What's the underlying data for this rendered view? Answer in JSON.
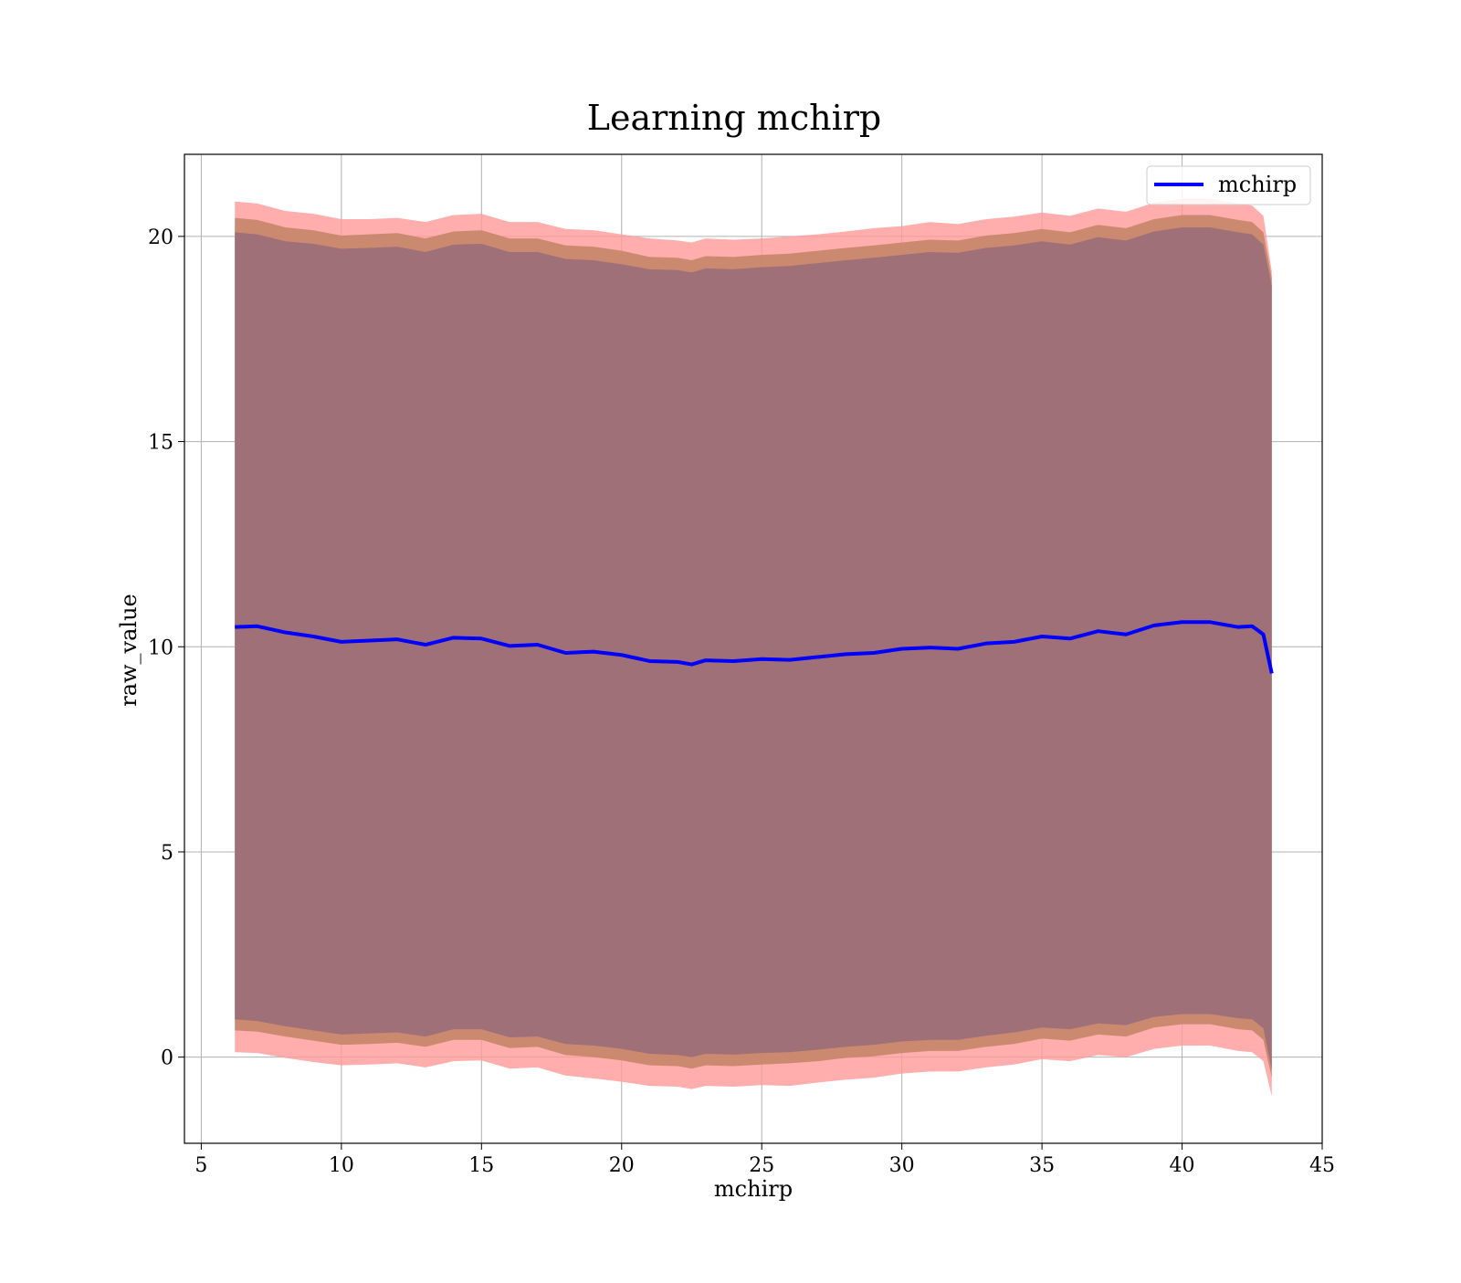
{
  "chart_data": {
    "type": "area",
    "title": "Learning mchirp",
    "xlabel": "mchirp",
    "ylabel": "raw_value",
    "xlim": [
      4.4,
      45
    ],
    "ylim": [
      -2.1,
      22
    ],
    "xticks": [
      5,
      10,
      15,
      20,
      25,
      30,
      35,
      40,
      45
    ],
    "yticks": [
      0,
      5,
      10,
      15,
      20
    ],
    "grid": true,
    "legend": {
      "position": "top-right",
      "entries": [
        "mchirp"
      ]
    },
    "colors": {
      "line": "#0000ff",
      "band_outer": "#ff9999",
      "band_middle": "#c8876d",
      "band_inner": "#a07078",
      "grid": "#b0b0b0"
    },
    "x": [
      6.2,
      7,
      8,
      9,
      10,
      11,
      12,
      13,
      14,
      15,
      16,
      17,
      18,
      19,
      20,
      21,
      22,
      22.5,
      23,
      24,
      25,
      26,
      27,
      28,
      29,
      30,
      31,
      32,
      33,
      34,
      35,
      36,
      37,
      38,
      39,
      40,
      41,
      42,
      42.5,
      42.9,
      43.2
    ],
    "series": [
      {
        "name": "mchirp",
        "values": [
          10.48,
          10.5,
          10.35,
          10.25,
          10.12,
          10.15,
          10.18,
          10.05,
          10.22,
          10.2,
          10.02,
          10.05,
          9.85,
          9.88,
          9.8,
          9.65,
          9.63,
          9.57,
          9.67,
          9.65,
          9.7,
          9.68,
          9.75,
          9.82,
          9.85,
          9.95,
          9.98,
          9.95,
          10.08,
          10.12,
          10.25,
          10.2,
          10.38,
          10.3,
          10.52,
          10.6,
          10.6,
          10.48,
          10.5,
          10.3,
          9.35
        ]
      }
    ],
    "bands": [
      {
        "level": "outer",
        "upper": [
          20.85,
          20.8,
          20.62,
          20.55,
          20.42,
          20.42,
          20.45,
          20.35,
          20.52,
          20.55,
          20.35,
          20.35,
          20.18,
          20.15,
          20.05,
          19.95,
          19.9,
          19.85,
          19.95,
          19.92,
          19.95,
          20.0,
          20.05,
          20.12,
          20.2,
          20.25,
          20.35,
          20.3,
          20.42,
          20.48,
          20.58,
          20.5,
          20.68,
          20.6,
          20.82,
          20.92,
          20.92,
          20.8,
          20.75,
          20.5,
          19.15
        ],
        "lower": [
          0.12,
          0.1,
          -0.02,
          -0.12,
          -0.2,
          -0.18,
          -0.15,
          -0.25,
          -0.1,
          -0.08,
          -0.28,
          -0.25,
          -0.45,
          -0.52,
          -0.6,
          -0.7,
          -0.72,
          -0.78,
          -0.7,
          -0.72,
          -0.68,
          -0.7,
          -0.62,
          -0.55,
          -0.5,
          -0.4,
          -0.35,
          -0.35,
          -0.25,
          -0.18,
          -0.05,
          -0.1,
          0.05,
          0.0,
          0.2,
          0.28,
          0.28,
          0.15,
          0.12,
          -0.1,
          -0.95
        ]
      },
      {
        "level": "middle",
        "upper": [
          20.45,
          20.4,
          20.22,
          20.15,
          20.02,
          20.05,
          20.08,
          19.95,
          20.12,
          20.15,
          19.95,
          19.95,
          19.78,
          19.75,
          19.65,
          19.5,
          19.48,
          19.42,
          19.52,
          19.5,
          19.55,
          19.58,
          19.65,
          19.72,
          19.78,
          19.85,
          19.92,
          19.9,
          20.02,
          20.08,
          20.18,
          20.1,
          20.28,
          20.2,
          20.42,
          20.52,
          20.52,
          20.4,
          20.35,
          20.1,
          19.0
        ],
        "lower": [
          0.65,
          0.62,
          0.5,
          0.4,
          0.3,
          0.32,
          0.35,
          0.25,
          0.42,
          0.42,
          0.22,
          0.25,
          0.05,
          0.0,
          -0.08,
          -0.2,
          -0.22,
          -0.28,
          -0.2,
          -0.22,
          -0.18,
          -0.15,
          -0.1,
          -0.02,
          0.02,
          0.1,
          0.15,
          0.15,
          0.25,
          0.32,
          0.45,
          0.4,
          0.55,
          0.5,
          0.72,
          0.8,
          0.8,
          0.68,
          0.65,
          0.42,
          -0.5
        ]
      },
      {
        "level": "inner",
        "upper": [
          20.1,
          20.05,
          19.88,
          19.82,
          19.7,
          19.72,
          19.75,
          19.62,
          19.8,
          19.82,
          19.62,
          19.62,
          19.45,
          19.42,
          19.32,
          19.2,
          19.18,
          19.12,
          19.22,
          19.2,
          19.25,
          19.28,
          19.35,
          19.42,
          19.48,
          19.55,
          19.62,
          19.6,
          19.72,
          19.78,
          19.88,
          19.8,
          19.98,
          19.9,
          20.12,
          20.22,
          20.22,
          20.1,
          20.05,
          19.8,
          18.8
        ],
        "lower": [
          0.92,
          0.88,
          0.75,
          0.65,
          0.55,
          0.58,
          0.6,
          0.5,
          0.68,
          0.68,
          0.48,
          0.5,
          0.32,
          0.28,
          0.2,
          0.08,
          0.05,
          0.0,
          0.08,
          0.06,
          0.1,
          0.12,
          0.18,
          0.25,
          0.3,
          0.38,
          0.42,
          0.42,
          0.52,
          0.6,
          0.72,
          0.68,
          0.82,
          0.78,
          0.98,
          1.05,
          1.05,
          0.95,
          0.92,
          0.7,
          -0.3
        ]
      }
    ]
  }
}
